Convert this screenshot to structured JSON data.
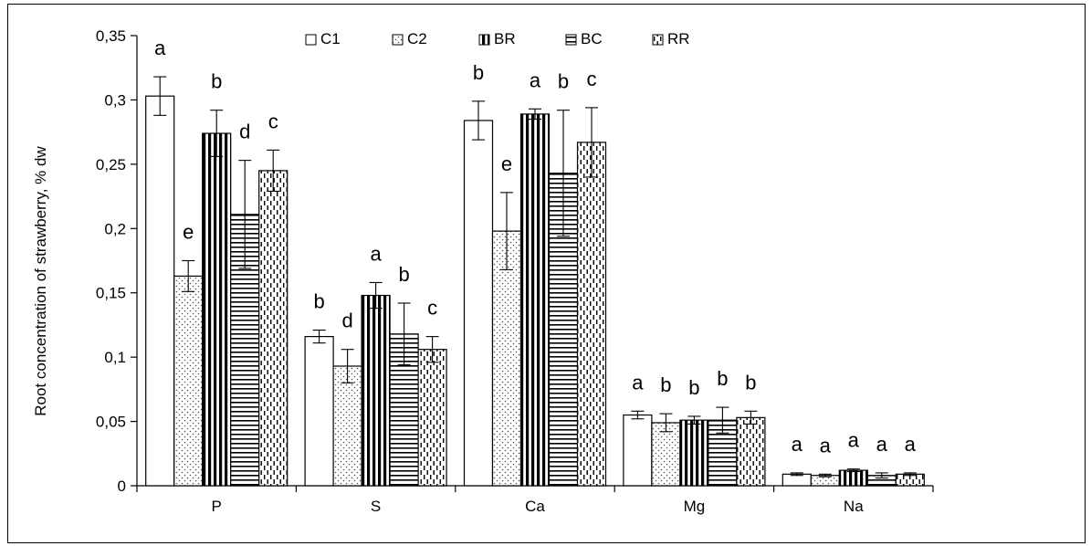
{
  "chart_data": {
    "type": "bar",
    "ylabel": "Root concentration of strawberry, % dw",
    "ylim": [
      0,
      0.35
    ],
    "yticks": [
      0,
      0.05,
      0.1,
      0.15,
      0.2,
      0.25,
      0.3,
      0.35
    ],
    "ytick_labels": [
      "0",
      "0,05",
      "0,1",
      "0,15",
      "0,2",
      "0,25",
      "0,3",
      "0,35"
    ],
    "categories": [
      "P",
      "S",
      "Ca",
      "Mg",
      "Na"
    ],
    "legend_position": "top-center",
    "grid": false,
    "series": [
      {
        "name": "C1",
        "pattern": "white",
        "values": [
          0.303,
          0.116,
          0.284,
          0.055,
          0.009
        ],
        "errors": [
          0.015,
          0.005,
          0.015,
          0.003,
          0.001
        ],
        "letters": [
          "a",
          "b",
          "b",
          "a",
          "a"
        ]
      },
      {
        "name": "C2",
        "pattern": "dots",
        "values": [
          0.163,
          0.093,
          0.198,
          0.049,
          0.008
        ],
        "errors": [
          0.012,
          0.013,
          0.03,
          0.007,
          0.001
        ],
        "letters": [
          "e",
          "d",
          "e",
          "b",
          "a"
        ]
      },
      {
        "name": "BR",
        "pattern": "vertical",
        "values": [
          0.274,
          0.148,
          0.289,
          0.051,
          0.012
        ],
        "errors": [
          0.018,
          0.01,
          0.004,
          0.003,
          0.001
        ],
        "letters": [
          "b",
          "a",
          "a",
          "b",
          "a"
        ]
      },
      {
        "name": "BC",
        "pattern": "horizontal",
        "values": [
          0.211,
          0.118,
          0.243,
          0.051,
          0.008
        ],
        "errors": [
          0.042,
          0.024,
          0.049,
          0.01,
          0.002
        ],
        "letters": [
          "d",
          "b",
          "b",
          "b",
          "a"
        ]
      },
      {
        "name": "RR",
        "pattern": "dashed",
        "values": [
          0.245,
          0.106,
          0.267,
          0.053,
          0.009
        ],
        "errors": [
          0.016,
          0.01,
          0.027,
          0.005,
          0.001
        ],
        "letters": [
          "c",
          "c",
          "c",
          "b",
          "a"
        ]
      }
    ]
  }
}
